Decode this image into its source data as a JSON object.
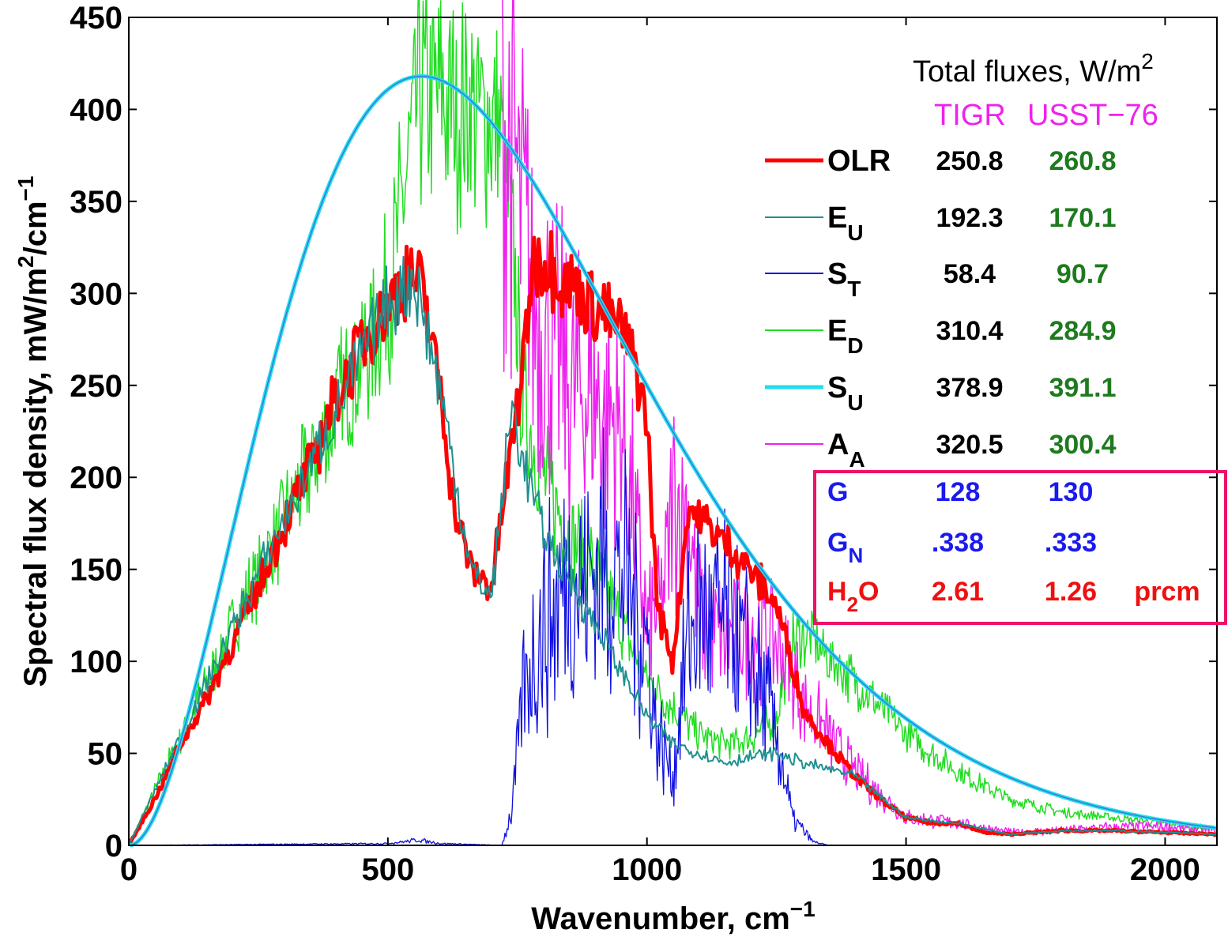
{
  "chart_data": {
    "type": "line",
    "xlabel": "Wavenumber, cm",
    "xlabel_sup": "−1",
    "ylabel_parts": {
      "a": "Spectral flux density, mW/m",
      "b": "2",
      "c": "/cm",
      "d": "−1"
    },
    "xlim": [
      0,
      2100
    ],
    "ylim": [
      0,
      450
    ],
    "x_ticks": [
      0,
      500,
      1000,
      1500,
      2000
    ],
    "y_ticks": [
      0,
      50,
      100,
      150,
      200,
      250,
      300,
      350,
      400,
      450
    ],
    "x_tick_labels": [
      "0",
      "500",
      "1000",
      "1500",
      "2000"
    ],
    "y_tick_labels": [
      "0",
      "50",
      "100",
      "150",
      "200",
      "250",
      "300",
      "350",
      "400",
      "450"
    ],
    "annotation": {
      "header": "Total fluxes,  W/m",
      "header_sup": "2",
      "profile_a": "TIGR",
      "profile_b": "USST−76",
      "rows": [
        {
          "label": "OLR",
          "sub": "",
          "v1": "250.8",
          "v2": "260.8",
          "color": "#ff0000",
          "width": 5
        },
        {
          "label": "E",
          "sub": "U",
          "v1": "192.3",
          "v2": "170.1",
          "color": "#1f8f8f",
          "width": 2
        },
        {
          "label": "S",
          "sub": "T",
          "v1": "58.4",
          "v2": "90.7",
          "color": "#1010e0",
          "width": 2
        },
        {
          "label": "E",
          "sub": "D",
          "v1": "310.4",
          "v2": "284.9",
          "color": "#22dd22",
          "width": 2
        },
        {
          "label": "S",
          "sub": "U",
          "v1": "378.9",
          "v2": "391.1",
          "color": "#22ddee",
          "width": 5
        },
        {
          "label": "A",
          "sub": "A",
          "v1": "320.5",
          "v2": "300.4",
          "color": "#ee22ee",
          "width": 2
        }
      ],
      "boxed_rows": [
        {
          "label": "G",
          "sub": "",
          "v1": "128",
          "v2": "130",
          "unit": "",
          "color": "#1a1aee"
        },
        {
          "label": "G",
          "sub": "N",
          "v1": ".338",
          "v2": ".333",
          "unit": "",
          "color": "#1a1aee"
        },
        {
          "label": "H",
          "sub": "2",
          "label_after": "O",
          "v1": "2.61",
          "v2": "1.26",
          "unit": "prcm",
          "color": "#ee1111"
        }
      ],
      "box_color": "#ee1166"
    },
    "series": [
      {
        "name": "OLR",
        "color": "#ff0000"
      },
      {
        "name": "E_U",
        "color": "#1f8f8f"
      },
      {
        "name": "S_T",
        "color": "#1010e0"
      },
      {
        "name": "E_D",
        "color": "#22dd22"
      },
      {
        "name": "S_U",
        "color": "#22ddee"
      },
      {
        "name": "A_A",
        "color": "#ee22ee"
      }
    ],
    "planck_peak": 418,
    "planck_peak_x": 565,
    "olr_envelope": [
      [
        0,
        0
      ],
      [
        50,
        25
      ],
      [
        100,
        55
      ],
      [
        150,
        80
      ],
      [
        200,
        110
      ],
      [
        250,
        140
      ],
      [
        300,
        175
      ],
      [
        350,
        205
      ],
      [
        400,
        245
      ],
      [
        450,
        275
      ],
      [
        500,
        295
      ],
      [
        540,
        310
      ],
      [
        570,
        300
      ],
      [
        600,
        250
      ],
      [
        630,
        180
      ],
      [
        660,
        150
      ],
      [
        700,
        140
      ],
      [
        730,
        200
      ],
      [
        760,
        260
      ],
      [
        780,
        320
      ],
      [
        800,
        318
      ],
      [
        850,
        305
      ],
      [
        900,
        295
      ],
      [
        950,
        280
      ],
      [
        980,
        260
      ],
      [
        1000,
        230
      ],
      [
        1020,
        130
      ],
      [
        1050,
        100
      ],
      [
        1080,
        185
      ],
      [
        1100,
        178
      ],
      [
        1150,
        165
      ],
      [
        1200,
        150
      ],
      [
        1250,
        130
      ],
      [
        1280,
        100
      ],
      [
        1300,
        75
      ],
      [
        1350,
        55
      ],
      [
        1400,
        38
      ],
      [
        1450,
        25
      ],
      [
        1500,
        15
      ],
      [
        1550,
        12
      ],
      [
        1600,
        12
      ],
      [
        1650,
        7
      ],
      [
        1700,
        6
      ],
      [
        1800,
        8
      ],
      [
        1900,
        8
      ],
      [
        2000,
        7
      ],
      [
        2100,
        6
      ]
    ],
    "eu_envelope": [
      [
        0,
        0
      ],
      [
        500,
        295
      ],
      [
        550,
        310
      ],
      [
        600,
        250
      ],
      [
        660,
        150
      ],
      [
        700,
        135
      ],
      [
        740,
        240
      ],
      [
        760,
        210
      ],
      [
        800,
        170
      ],
      [
        850,
        145
      ],
      [
        900,
        120
      ],
      [
        950,
        95
      ],
      [
        1000,
        70
      ],
      [
        1050,
        55
      ],
      [
        1100,
        50
      ],
      [
        1150,
        45
      ],
      [
        1200,
        48
      ],
      [
        1250,
        50
      ],
      [
        1300,
        45
      ],
      [
        1400,
        38
      ],
      [
        1500,
        15
      ],
      [
        1600,
        12
      ],
      [
        1700,
        6
      ],
      [
        1800,
        8
      ],
      [
        1900,
        8
      ],
      [
        2000,
        7
      ],
      [
        2100,
        6
      ]
    ],
    "st_envelope": [
      [
        0,
        0
      ],
      [
        500,
        1
      ],
      [
        560,
        3
      ],
      [
        600,
        1
      ],
      [
        720,
        0
      ],
      [
        740,
        20
      ],
      [
        760,
        80
      ],
      [
        800,
        120
      ],
      [
        850,
        140
      ],
      [
        900,
        150
      ],
      [
        950,
        150
      ],
      [
        1000,
        110
      ],
      [
        1020,
        60
      ],
      [
        1050,
        40
      ],
      [
        1080,
        110
      ],
      [
        1100,
        125
      ],
      [
        1150,
        120
      ],
      [
        1200,
        100
      ],
      [
        1250,
        60
      ],
      [
        1280,
        15
      ],
      [
        1320,
        2
      ],
      [
        1350,
        0
      ],
      [
        2100,
        0
      ]
    ],
    "ed_envelope": [
      [
        0,
        0
      ],
      [
        500,
        295
      ],
      [
        560,
        410
      ],
      [
        600,
        405
      ],
      [
        700,
        395
      ],
      [
        720,
        380
      ],
      [
        740,
        330
      ],
      [
        760,
        240
      ],
      [
        800,
        200
      ],
      [
        850,
        170
      ],
      [
        900,
        150
      ],
      [
        950,
        120
      ],
      [
        1000,
        90
      ],
      [
        1050,
        75
      ],
      [
        1100,
        60
      ],
      [
        1150,
        55
      ],
      [
        1200,
        58
      ],
      [
        1250,
        70
      ],
      [
        1280,
        110
      ],
      [
        1300,
        115
      ],
      [
        1340,
        105
      ],
      [
        1400,
        90
      ],
      [
        1500,
        60
      ],
      [
        1600,
        40
      ],
      [
        1700,
        25
      ],
      [
        1800,
        18
      ],
      [
        1900,
        15
      ],
      [
        2000,
        12
      ],
      [
        2100,
        9
      ]
    ],
    "aa_envelope": [
      [
        0,
        0
      ],
      [
        720,
        395
      ],
      [
        740,
        380
      ],
      [
        760,
        340
      ],
      [
        780,
        300
      ],
      [
        800,
        280
      ],
      [
        850,
        250
      ],
      [
        900,
        240
      ],
      [
        950,
        230
      ],
      [
        1000,
        120
      ],
      [
        1030,
        130
      ],
      [
        1050,
        190
      ],
      [
        1080,
        180
      ],
      [
        1100,
        130
      ],
      [
        1150,
        110
      ],
      [
        1200,
        120
      ],
      [
        1250,
        110
      ],
      [
        1300,
        80
      ],
      [
        1400,
        40
      ],
      [
        1500,
        15
      ],
      [
        1600,
        12
      ],
      [
        1700,
        7
      ],
      [
        1800,
        8
      ],
      [
        1900,
        10
      ],
      [
        2000,
        10
      ],
      [
        2100,
        8
      ]
    ]
  }
}
